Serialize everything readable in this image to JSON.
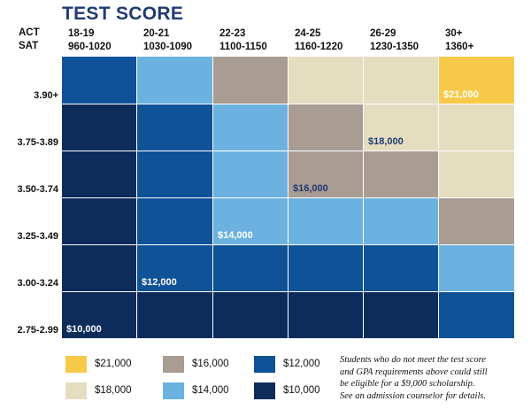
{
  "title": "TEST SCORE",
  "act_label": "ACT",
  "sat_label": "SAT",
  "colors": {
    "21000": "#f7c948",
    "18000": "#e5ddc0",
    "16000": "#a89c93",
    "14000": "#6cb2e0",
    "12000": "#0f5297",
    "10000": "#0d2c5c"
  },
  "columns": [
    {
      "act": "18-19",
      "sat": "960-1020"
    },
    {
      "act": "20-21",
      "sat": "1030-1090"
    },
    {
      "act": "22-23",
      "sat": "1100-1150"
    },
    {
      "act": "24-25",
      "sat": "1160-1220"
    },
    {
      "act": "26-29",
      "sat": "1230-1350"
    },
    {
      "act": "30+",
      "sat": "1360+"
    }
  ],
  "rows": [
    "3.90+",
    "3.75-3.89",
    "3.50-3.74",
    "3.25-3.49",
    "3.00-3.24",
    "2.75-2.99"
  ],
  "grid": [
    [
      "12000",
      "14000",
      "16000",
      "18000",
      "18000",
      "21000"
    ],
    [
      "10000",
      "12000",
      "14000",
      "16000",
      "18000",
      "18000"
    ],
    [
      "10000",
      "12000",
      "14000",
      "16000",
      "16000",
      "18000"
    ],
    [
      "10000",
      "12000",
      "14000",
      "14000",
      "14000",
      "16000"
    ],
    [
      "10000",
      "12000",
      "12000",
      "12000",
      "12000",
      "14000"
    ],
    [
      "10000",
      "10000",
      "10000",
      "10000",
      "10000",
      "12000"
    ]
  ],
  "cell_labels": [
    {
      "row": 0,
      "col": 5,
      "text": "$21,000",
      "tone": "light"
    },
    {
      "row": 1,
      "col": 4,
      "text": "$18,000",
      "tone": "dark"
    },
    {
      "row": 2,
      "col": 3,
      "text": "$16,000",
      "tone": "dark"
    },
    {
      "row": 3,
      "col": 2,
      "text": "$14,000",
      "tone": "light"
    },
    {
      "row": 4,
      "col": 1,
      "text": "$12,000",
      "tone": "light"
    },
    {
      "row": 5,
      "col": 0,
      "text": "$10,000",
      "tone": "light"
    }
  ],
  "legend": [
    {
      "key": "21000",
      "label": "$21,000"
    },
    {
      "key": "18000",
      "label": "$18,000"
    },
    {
      "key": "16000",
      "label": "$16,000"
    },
    {
      "key": "14000",
      "label": "$14,000"
    },
    {
      "key": "12000",
      "label": "$12,000"
    },
    {
      "key": "10000",
      "label": "$10,000"
    }
  ],
  "note_lines": [
    "Students who do not meet the test score",
    "and GPA requirements above could still",
    "be eligible for a $9,000 scholarship.",
    "See an admission counselor for details."
  ]
}
